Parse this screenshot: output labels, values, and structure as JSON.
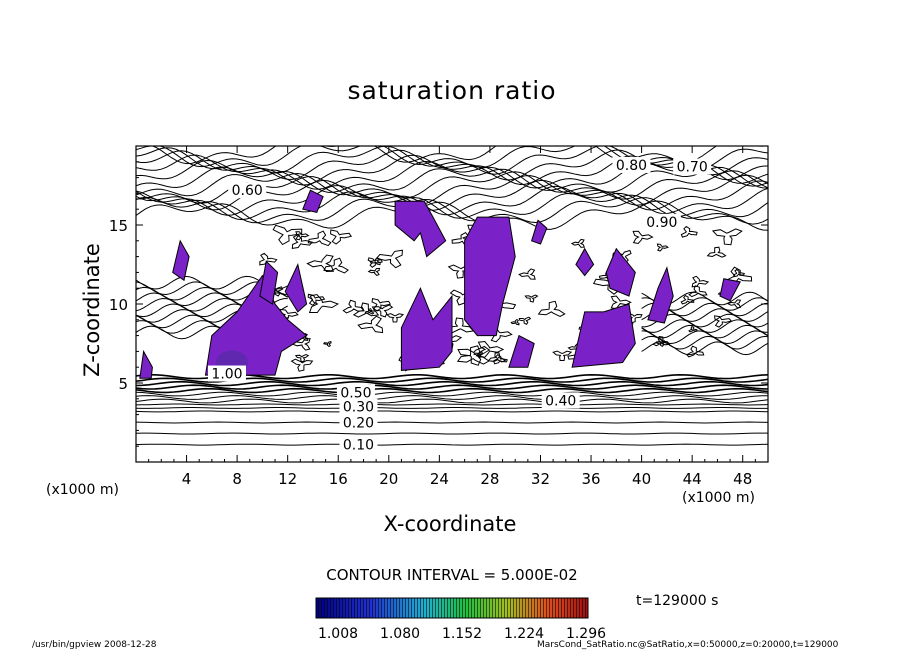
{
  "chart_data": {
    "type": "contour",
    "title": "saturation ratio",
    "xlabel": "X-coordinate",
    "ylabel": "Z-coordinate",
    "x_unit_label": "(x1000 m)",
    "xlim": [
      0,
      50
    ],
    "ylim": [
      0,
      20
    ],
    "xticks": [
      4,
      8,
      12,
      16,
      20,
      24,
      28,
      32,
      36,
      40,
      44,
      48
    ],
    "yticks": [
      5,
      10,
      15
    ],
    "contour_labels": [
      {
        "text": "0.10",
        "x": 17.6,
        "y": 1.1
      },
      {
        "text": "0.20",
        "x": 17.6,
        "y": 2.5
      },
      {
        "text": "0.30",
        "x": 17.6,
        "y": 3.5
      },
      {
        "text": "0.40",
        "x": 33.6,
        "y": 3.9
      },
      {
        "text": "0.50",
        "x": 17.4,
        "y": 4.4
      },
      {
        "text": "0.60",
        "x": 8.8,
        "y": 17.2
      },
      {
        "text": "0.70",
        "x": 44.0,
        "y": 18.7
      },
      {
        "text": "0.80",
        "x": 39.2,
        "y": 18.8
      },
      {
        "text": "0.90",
        "x": 41.6,
        "y": 15.2
      },
      {
        "text": "1.00",
        "x": 7.2,
        "y": 5.6
      }
    ],
    "contour_interval": "CONTOUR INTERVAL = 5.000E-02",
    "colorbar": {
      "ticks": [
        "1.008",
        "1.080",
        "1.152",
        "1.224",
        "1.296"
      ],
      "range": [
        1.008,
        1.296
      ]
    },
    "time_label": "t=129000 s",
    "shaded_regions_color": "#7a22c8",
    "grid": false
  },
  "footer": {
    "left": "/usr/bin/gpview   2008-12-28",
    "right": "MarsCond_SatRatio.nc@SatRatio,x=0:50000,z=0:20000,t=129000"
  },
  "x_unit_text": "(x1000 m)",
  "x_unit_text2": "(x1000 m)"
}
